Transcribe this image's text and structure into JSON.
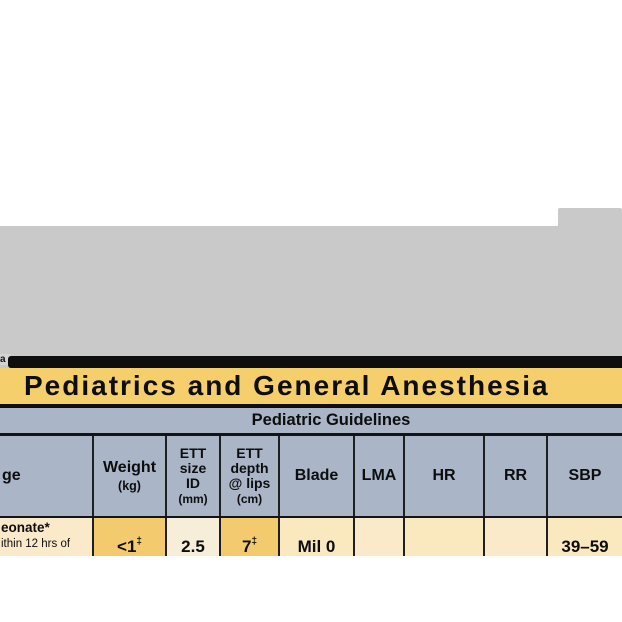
{
  "banner": {
    "title": "Pediatrics and General Anesthesia"
  },
  "section": {
    "title": "Pediatric Guidelines"
  },
  "edge_artifact": "a",
  "colors": {
    "banner_yellow": "#f5cf6b",
    "band_bluegray": "#abb5c8",
    "cell_cream": "#fae8bf",
    "cell_amber": "#f3ca6e",
    "cell_pale": "#f7eed9",
    "card_gray": "#c9c9c9",
    "bar_black": "#0e0e0e"
  },
  "table": {
    "header": {
      "age": "ge",
      "weight": {
        "name": "Weight",
        "unit": "(kg)"
      },
      "ett_size": {
        "l1": "ETT",
        "l2": "size",
        "l3": "ID",
        "unit": "(mm)"
      },
      "ett_depth": {
        "l1": "ETT",
        "l2": "depth",
        "l3": "@ lips",
        "unit": "(cm)"
      },
      "blade": "Blade",
      "lma": "LMA",
      "hr": "HR",
      "rr": "RR",
      "sbp": "SBP"
    },
    "row_neonate": {
      "age_line1": "eonate*",
      "age_line2": "ithin 12 hrs of",
      "weight": "<1",
      "weight_sup": "‡",
      "ett_size": "2.5",
      "ett_depth": "7",
      "ett_depth_sup": "‡",
      "blade": "Mil 0",
      "lma": "",
      "hr": "",
      "rr": "",
      "sbp": "39–59"
    }
  },
  "chart_data": {
    "type": "table",
    "title": "Pediatric Guidelines",
    "columns": [
      "ge (Age, cropped)",
      "Weight (kg)",
      "ETT size ID (mm)",
      "ETT depth @ lips (cm)",
      "Blade",
      "LMA",
      "HR",
      "RR",
      "SBP"
    ],
    "rows": [
      [
        "eonate* / ithin 12 hrs of (cropped)",
        "<1‡",
        "2.5",
        "7‡",
        "Mil 0",
        "",
        "",
        "",
        "39–59"
      ]
    ],
    "layout": "table cropped at left, right and bottom edges of screenshot"
  }
}
